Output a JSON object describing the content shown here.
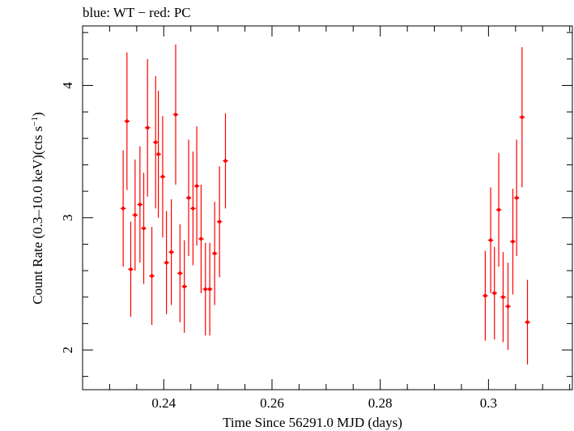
{
  "chart_data": {
    "type": "scatter",
    "title": "blue: WT − red: PC",
    "xlabel": "Time Since 56291.0 MJD (days)",
    "ylabel_main": "Count Rate (0.3–10.0 keV)(cts s",
    "ylabel_sup": "−1",
    "ylabel_close": ")",
    "xlim": [
      0.225,
      0.3155
    ],
    "ylim": [
      1.7,
      4.45
    ],
    "x_ticks": [
      0.24,
      0.26,
      0.28,
      0.3
    ],
    "x_tick_labels": [
      "0.24",
      "0.26",
      "0.28",
      "0.3"
    ],
    "y_ticks": [
      2,
      3,
      4
    ],
    "y_tick_labels": [
      "2",
      "3",
      "4"
    ],
    "series": [
      {
        "color": "#ff0000",
        "x_half_width": 0.0005,
        "points": [
          {
            "x": 0.2325,
            "y": 3.07,
            "err": 0.44
          },
          {
            "x": 0.2332,
            "y": 3.73,
            "err": 0.52
          },
          {
            "x": 0.2339,
            "y": 2.61,
            "err": 0.36
          },
          {
            "x": 0.2347,
            "y": 3.02,
            "err": 0.42
          },
          {
            "x": 0.2356,
            "y": 3.1,
            "err": 0.44
          },
          {
            "x": 0.2363,
            "y": 2.92,
            "err": 0.42
          },
          {
            "x": 0.237,
            "y": 3.68,
            "err": 0.52
          },
          {
            "x": 0.2378,
            "y": 2.56,
            "err": 0.37
          },
          {
            "x": 0.2385,
            "y": 3.57,
            "err": 0.5
          },
          {
            "x": 0.239,
            "y": 3.48,
            "err": 0.48
          },
          {
            "x": 0.2398,
            "y": 3.31,
            "err": 0.46
          },
          {
            "x": 0.2405,
            "y": 2.66,
            "err": 0.39
          },
          {
            "x": 0.2414,
            "y": 2.74,
            "err": 0.4
          },
          {
            "x": 0.2422,
            "y": 3.78,
            "err": 0.53
          },
          {
            "x": 0.243,
            "y": 2.58,
            "err": 0.37
          },
          {
            "x": 0.2438,
            "y": 2.48,
            "err": 0.35
          },
          {
            "x": 0.2446,
            "y": 3.15,
            "err": 0.44
          },
          {
            "x": 0.2454,
            "y": 3.07,
            "err": 0.43
          },
          {
            "x": 0.2461,
            "y": 3.24,
            "err": 0.45
          },
          {
            "x": 0.2469,
            "y": 2.84,
            "err": 0.41
          },
          {
            "x": 0.2477,
            "y": 2.46,
            "err": 0.35
          },
          {
            "x": 0.2485,
            "y": 2.46,
            "err": 0.35
          },
          {
            "x": 0.2494,
            "y": 2.73,
            "err": 0.39
          },
          {
            "x": 0.2503,
            "y": 2.97,
            "err": 0.42
          },
          {
            "x": 0.2514,
            "y": 3.43,
            "err": 0.36
          },
          {
            "x": 0.2994,
            "y": 2.41,
            "err": 0.34
          },
          {
            "x": 0.3004,
            "y": 2.83,
            "err": 0.4
          },
          {
            "x": 0.3011,
            "y": 2.43,
            "err": 0.35
          },
          {
            "x": 0.3019,
            "y": 3.06,
            "err": 0.43
          },
          {
            "x": 0.3027,
            "y": 2.4,
            "err": 0.34
          },
          {
            "x": 0.3036,
            "y": 2.33,
            "err": 0.33
          },
          {
            "x": 0.3045,
            "y": 2.82,
            "err": 0.4
          },
          {
            "x": 0.3052,
            "y": 3.15,
            "err": 0.44
          },
          {
            "x": 0.3062,
            "y": 3.76,
            "err": 0.53
          },
          {
            "x": 0.3072,
            "y": 2.21,
            "err": 0.32
          }
        ]
      }
    ]
  }
}
